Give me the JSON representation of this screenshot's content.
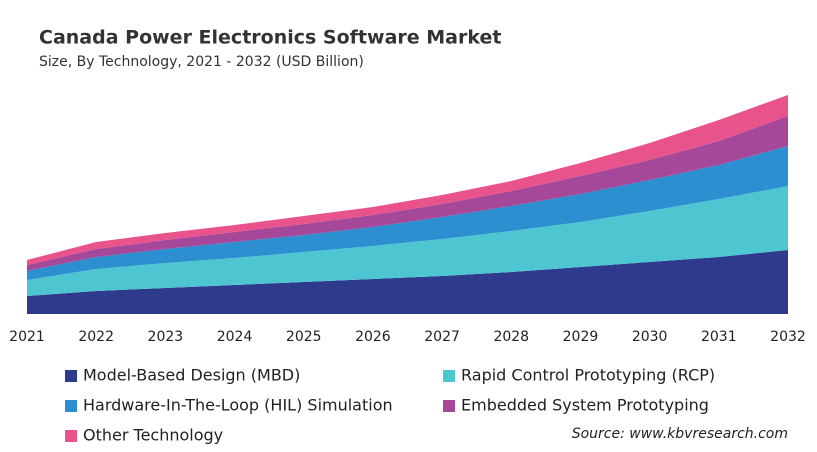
{
  "chart_data": {
    "type": "stacked_area",
    "title": "Canada Power Electronics Software Market",
    "subtitle": "Size, By Technology, 2021 - 2032 (USD Billion)",
    "source": "Source: www.kbvresearch.com",
    "categories": [
      "2021",
      "2022",
      "2023",
      "2024",
      "2025",
      "2026",
      "2027",
      "2028",
      "2029",
      "2030",
      "2031",
      "2032"
    ],
    "ylim": [
      0,
      2.2
    ],
    "series": [
      {
        "name": "Model-Based Design (MBD)",
        "color": "#2e3a8c",
        "values": [
          0.18,
          0.23,
          0.26,
          0.29,
          0.32,
          0.35,
          0.38,
          0.42,
          0.47,
          0.52,
          0.57,
          0.64
        ]
      },
      {
        "name": "Rapid Control Prototyping (RCP)",
        "color": "#4ec6d2",
        "values": [
          0.16,
          0.22,
          0.25,
          0.27,
          0.3,
          0.33,
          0.37,
          0.41,
          0.45,
          0.51,
          0.58,
          0.64
        ]
      },
      {
        "name": "Hardware-In-The-Loop (HIL) Simulation",
        "color": "#2b8fd0",
        "values": [
          0.09,
          0.12,
          0.14,
          0.16,
          0.17,
          0.19,
          0.22,
          0.25,
          0.28,
          0.31,
          0.34,
          0.4
        ]
      },
      {
        "name": "Embedded System Prototyping",
        "color": "#a6489a",
        "values": [
          0.06,
          0.08,
          0.09,
          0.1,
          0.11,
          0.12,
          0.13,
          0.15,
          0.18,
          0.2,
          0.24,
          0.3
        ]
      },
      {
        "name": "Other Technology",
        "color": "#e8538c",
        "values": [
          0.05,
          0.07,
          0.07,
          0.07,
          0.08,
          0.08,
          0.09,
          0.1,
          0.13,
          0.17,
          0.21,
          0.21
        ]
      }
    ]
  }
}
